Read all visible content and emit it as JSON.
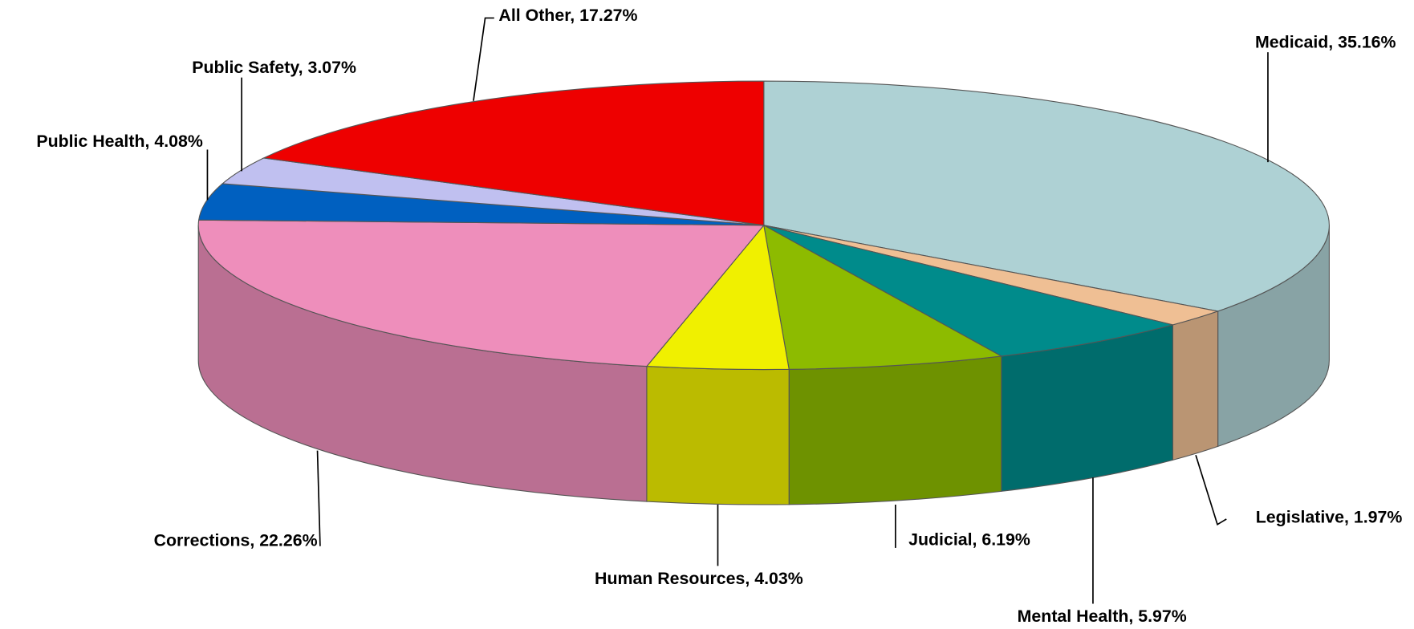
{
  "chart_data": {
    "type": "pie",
    "categories": [
      "Medicaid",
      "Legislative",
      "Mental Health",
      "Judicial",
      "Human Resources",
      "Corrections",
      "Public Health",
      "Public Safety",
      "All Other"
    ],
    "values": [
      35.16,
      1.97,
      5.97,
      6.19,
      4.03,
      22.26,
      4.08,
      3.07,
      17.27
    ],
    "value_labels": [
      "Medicaid, 35.16%",
      "Legislative, 1.97%",
      "Mental Health, 5.97%",
      "Judicial, 6.19%",
      "Human Resources, 4.03%",
      "Corrections, 22.26%",
      "Public Health, 4.08%",
      "Public Safety, 3.07%",
      "All Other, 17.27%"
    ],
    "colors": [
      "#aed1d4",
      "#efbf94",
      "#008b8b",
      "#8dbb00",
      "#f0f000",
      "#ee8ebb",
      "#0060c0",
      "#c0c0f0",
      "#ee0000"
    ]
  }
}
